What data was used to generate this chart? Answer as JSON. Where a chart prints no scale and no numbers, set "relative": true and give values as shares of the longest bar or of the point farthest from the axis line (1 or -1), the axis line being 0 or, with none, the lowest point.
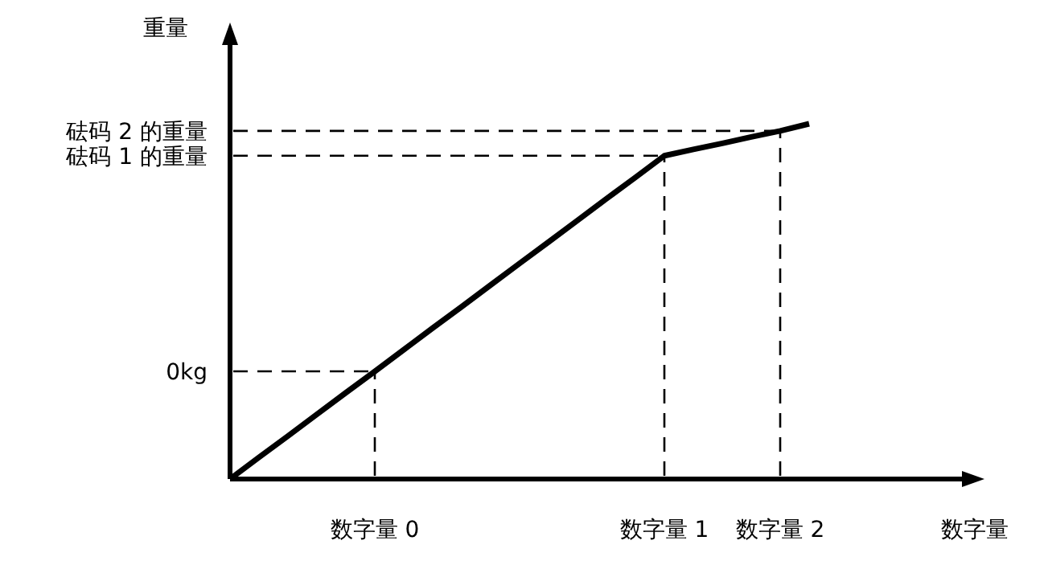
{
  "chart_data": {
    "type": "line",
    "relative": true,
    "ylabel": "重量",
    "categories": [
      null,
      null,
      null,
      null,
      null,
      "数字量 0",
      null,
      null,
      null,
      null,
      null,
      null,
      null,
      null,
      null,
      "数字量 1",
      null,
      null,
      null,
      "数字量 2",
      null
    ],
    "values": [
      0,
      0.061,
      0.121,
      0.182,
      0.243,
      0.303,
      0.364,
      0.425,
      0.485,
      0.546,
      0.607,
      0.667,
      0.728,
      0.789,
      0.849,
      0.91,
      0.928,
      0.945,
      0.963,
      0.98,
      1
    ],
    "color": "#000000",
    "ref_lines": [
      {
        "axis": "y",
        "value": 0.303,
        "label": "0kg",
        "line_style": "dashed"
      },
      {
        "axis": "y",
        "value": 0.91,
        "label": "砝码 1 的重量",
        "line_style": "dashed"
      },
      {
        "axis": "y",
        "value": 0.98,
        "label": "砝码 2 的重量",
        "line_style": "dashed"
      },
      {
        "axis": "x",
        "value": "数字量 0",
        "line_style": "dashed"
      },
      {
        "axis": "x",
        "value": "数字量 1",
        "line_style": "dashed"
      },
      {
        "axis": "x",
        "value": "数字量 2",
        "line_style": "dashed"
      }
    ],
    "annotations": [
      "数字量"
    ]
  }
}
